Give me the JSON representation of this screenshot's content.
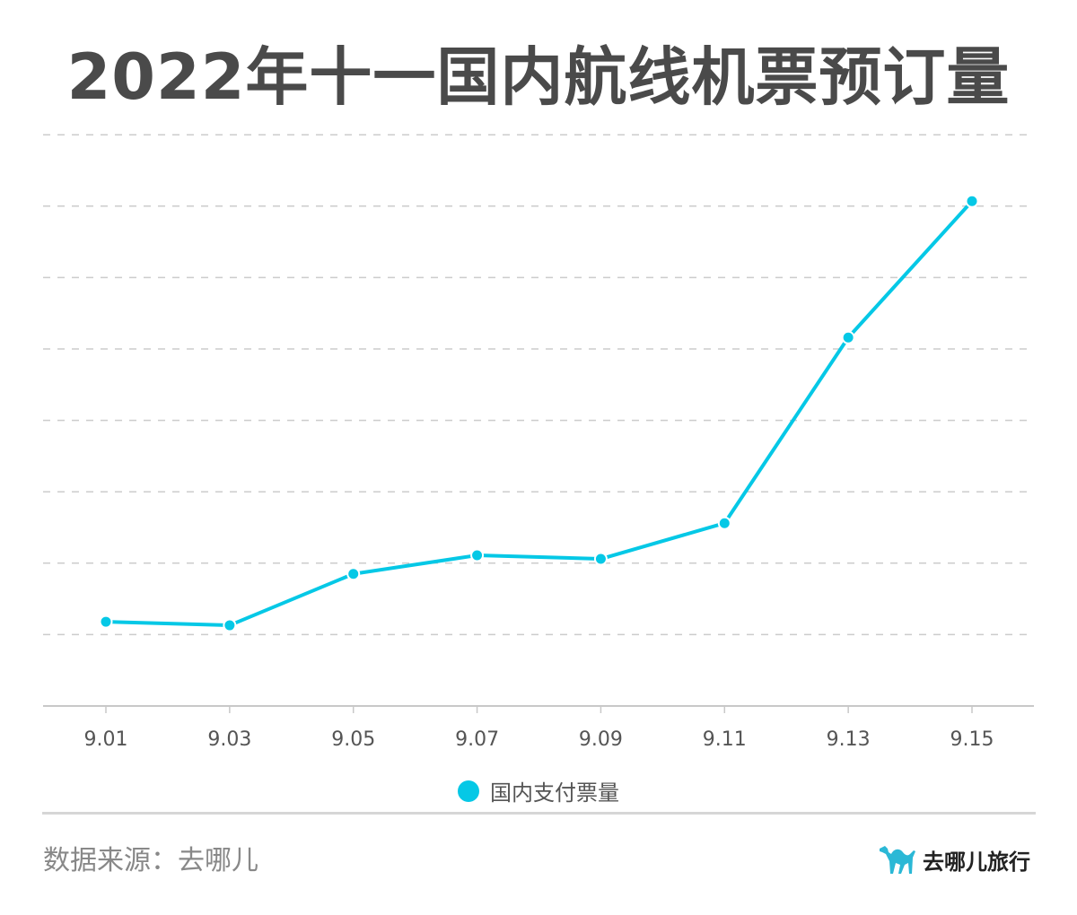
{
  "header": {
    "title": "2022年十一国内航线机票预订量"
  },
  "chart_data": {
    "type": "line",
    "title": "2022年十一国内航线机票预订量",
    "xlabel": "",
    "ylabel": "",
    "categories": [
      "9.01",
      "9.03",
      "9.05",
      "9.07",
      "9.09",
      "9.11",
      "9.13",
      "9.15"
    ],
    "series": [
      {
        "name": "国内支付票量",
        "values": [
          1.18,
          1.13,
          1.85,
          2.11,
          2.06,
          2.56,
          5.16,
          7.07
        ],
        "color": "#05c8e6"
      }
    ],
    "ylim": [
      0,
      8
    ],
    "y_units_note": "relative (one unit per gridline; no y-axis tick labels shown)",
    "grid": true,
    "legend_position": "bottom"
  },
  "legend": {
    "label": "国内支付票量",
    "color": "#05c8e6"
  },
  "footer": {
    "source": "数据来源：去哪儿",
    "brand_name": "去哪儿旅行",
    "brand_icon": "camel-icon",
    "brand_color": "#2bb8d6"
  }
}
